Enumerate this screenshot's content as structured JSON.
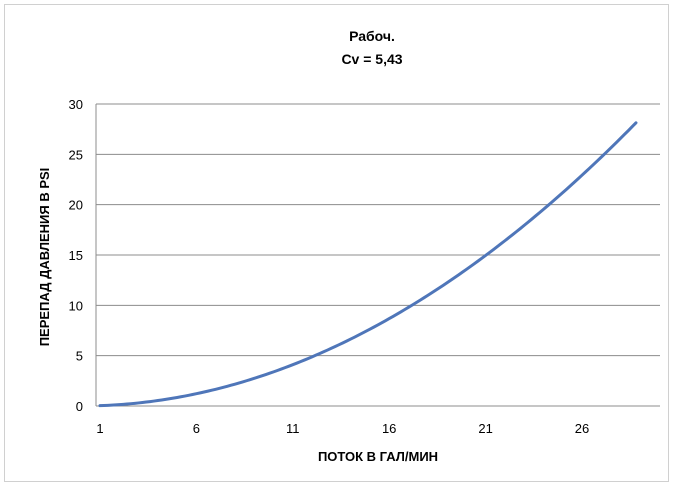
{
  "chart_data": {
    "type": "line",
    "title": [
      "Рабоч.",
      "Cv = 5,43"
    ],
    "xlabel": "ПОТОК В ГАЛ/МИН",
    "ylabel": "ПЕРЕПАД ДАВЛЕНИЯ В PSI",
    "x_ticks": [
      "1",
      "6",
      "11",
      "16",
      "21",
      "26"
    ],
    "y_ticks": [
      "0",
      "5",
      "10",
      "15",
      "20",
      "25",
      "30"
    ],
    "xlim": [
      1,
      28.8
    ],
    "ylim": [
      0,
      30
    ],
    "grid": true,
    "legend": "none",
    "series": [
      {
        "cv": 5.43,
        "relation": "dp = (q / cv)^2",
        "x_start": 1,
        "x_end": 28.8,
        "x_step": 0.2,
        "points": [
          [
            1,
            0.03
          ],
          [
            6,
            1.22
          ],
          [
            11,
            4.1
          ],
          [
            16,
            8.68
          ],
          [
            21,
            14.96
          ],
          [
            26,
            22.93
          ],
          [
            28.8,
            28.13
          ]
        ]
      }
    ],
    "colors": {
      "series": "#4f76b9",
      "grid": "#8c8c8c",
      "frame": "#d0d0d0"
    }
  }
}
